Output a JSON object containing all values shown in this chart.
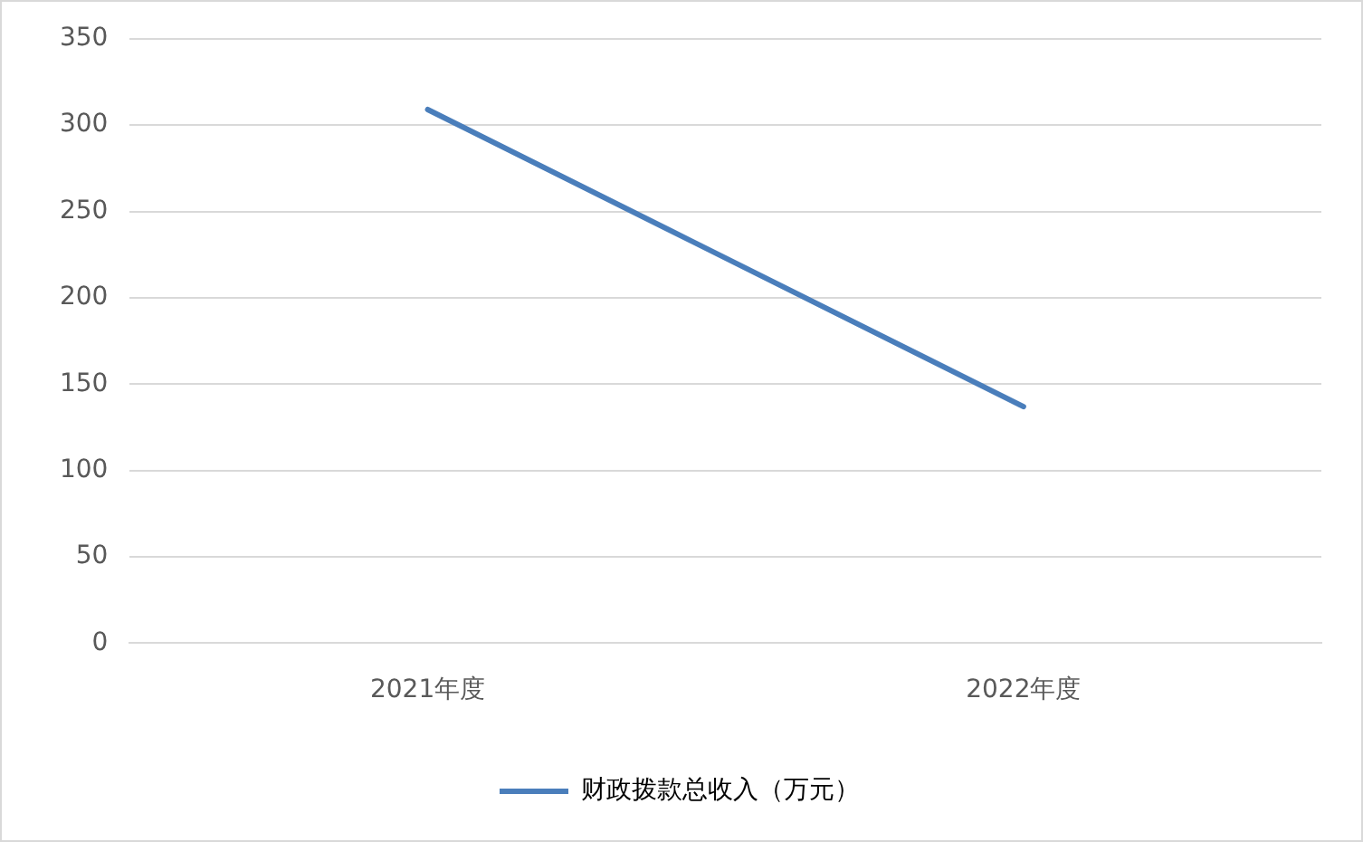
{
  "chart_data": {
    "type": "line",
    "categories": [
      "2021年度",
      "2022年度"
    ],
    "series": [
      {
        "name": "财政拨款总收入（万元）",
        "color": "#4a7ebb",
        "values": [
          309,
          137
        ]
      }
    ],
    "ylim": [
      0,
      350
    ],
    "yticks": [
      0,
      50,
      100,
      150,
      200,
      250,
      300,
      350
    ],
    "grid": "y",
    "legend": "bottom",
    "marker": "none",
    "line_style": "solid"
  }
}
